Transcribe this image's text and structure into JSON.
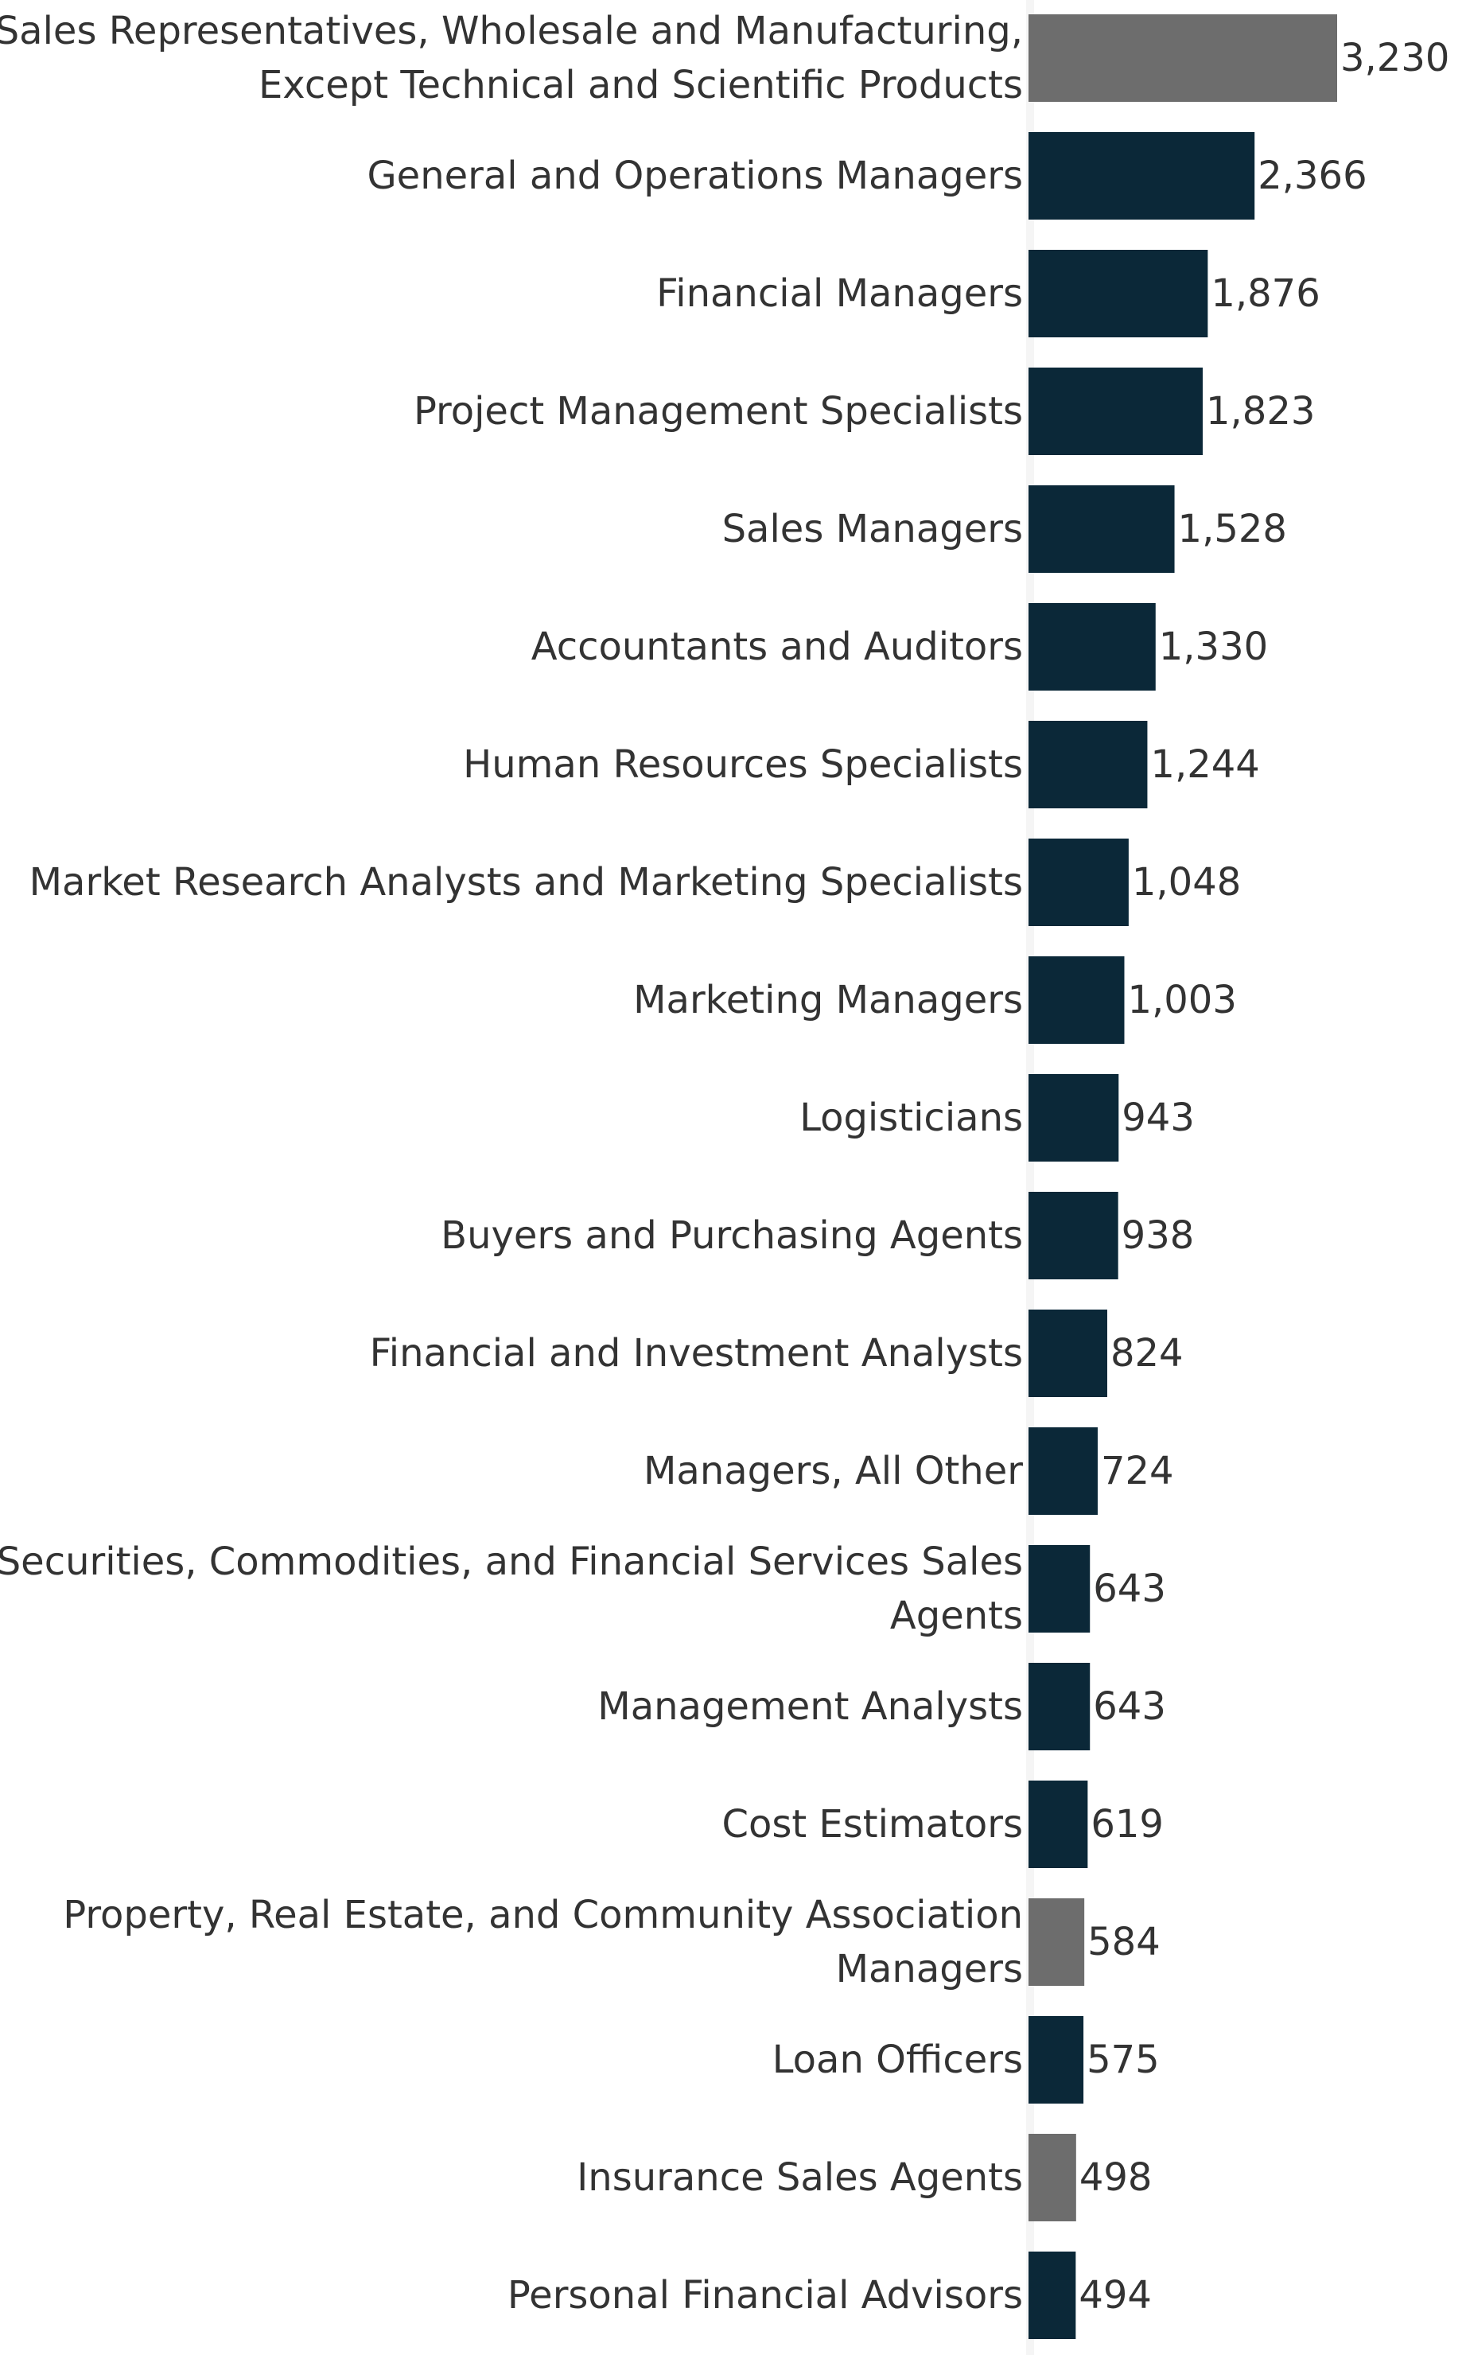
{
  "chart_data": {
    "type": "bar",
    "orientation": "horizontal",
    "title": "",
    "xlabel": "",
    "ylabel": "",
    "grid": false,
    "legend": "none",
    "xlim": [
      0,
      3230
    ],
    "colors": {
      "default": "#0b2838",
      "highlight": "#6d6d6d"
    },
    "categories": [
      [
        "Sales Representatives, Wholesale and Manufacturing,",
        "Except Technical and Scientific Products"
      ],
      [
        "General and Operations Managers"
      ],
      [
        "Financial Managers"
      ],
      [
        "Project Management Specialists"
      ],
      [
        "Sales Managers"
      ],
      [
        "Accountants and Auditors"
      ],
      [
        "Human Resources Specialists"
      ],
      [
        "Market Research Analysts and Marketing Specialists"
      ],
      [
        "Marketing Managers"
      ],
      [
        "Logisticians"
      ],
      [
        "Buyers and Purchasing Agents"
      ],
      [
        "Financial and Investment Analysts"
      ],
      [
        "Managers, All Other"
      ],
      [
        "Securities, Commodities, and Financial Services Sales",
        "Agents"
      ],
      [
        "Management Analysts"
      ],
      [
        "Cost Estimators"
      ],
      [
        "Property, Real Estate, and Community Association",
        "Managers"
      ],
      [
        "Loan Officers"
      ],
      [
        "Insurance Sales Agents"
      ],
      [
        "Personal Financial Advisors"
      ]
    ],
    "values": [
      3230,
      2366,
      1876,
      1823,
      1528,
      1330,
      1244,
      1048,
      1003,
      943,
      938,
      824,
      724,
      643,
      643,
      619,
      584,
      575,
      498,
      494
    ],
    "value_labels": [
      "3,230",
      "2,366",
      "1,876",
      "1,823",
      "1,528",
      "1,330",
      "1,244",
      "1,048",
      "1,003",
      "943",
      "938",
      "824",
      "724",
      "643",
      "643",
      "619",
      "584",
      "575",
      "498",
      "494"
    ],
    "highlighted": [
      true,
      false,
      false,
      false,
      false,
      false,
      false,
      false,
      false,
      false,
      false,
      false,
      false,
      false,
      false,
      false,
      true,
      false,
      true,
      false
    ]
  }
}
